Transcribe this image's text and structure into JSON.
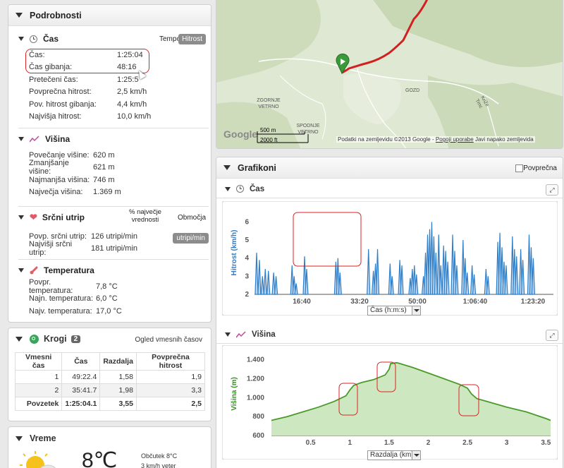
{
  "details": {
    "title": "Podrobnosti",
    "time": {
      "heading": "Čas",
      "tempo_label": "Tempo",
      "speed_button": "Hitrost",
      "rows": [
        {
          "label": "Čas:",
          "value": "1:25:04"
        },
        {
          "label": "Čas gibanja:",
          "value": "48:16"
        },
        {
          "label": "Pretečeni čas:",
          "value": "1:25:5"
        },
        {
          "label": "Povprečna hitrost:",
          "value": "2,5 km/h"
        },
        {
          "label": "Pov. hitrost gibanja:",
          "value": "4,4 km/h"
        },
        {
          "label": "Najvišja hitrost:",
          "value": "10,0 km/h"
        }
      ]
    },
    "altitude": {
      "heading": "Višina",
      "rows": [
        {
          "label": "Povečanje višine:",
          "value": "620 m"
        },
        {
          "label": "Zmanjšanje višine:",
          "value": "621 m"
        },
        {
          "label": "Najmanjša višina:",
          "value": "746 m"
        },
        {
          "label": "Največja višina:",
          "value": "1.369 m"
        }
      ]
    },
    "heart": {
      "heading": "Srčni utrip",
      "percent_label": "% največje vrednosti",
      "range_label": "Območja",
      "unit_button": "utripi/min",
      "rows": [
        {
          "label": "Povp. srčni utrip:",
          "value": "126 utripi/min"
        },
        {
          "label": "Najvišji srčni utrip:",
          "value": "181 utripi/min"
        }
      ]
    },
    "temperature": {
      "heading": "Temperatura",
      "rows": [
        {
          "label": "Povpr. temperatura:",
          "value": "7,8 °C"
        },
        {
          "label": "Najn. temperatura:",
          "value": "6,0 °C"
        },
        {
          "label": "Najv. temperatura:",
          "value": "17,0 °C"
        }
      ]
    }
  },
  "laps": {
    "title": "Krogi",
    "count": "2",
    "link": "Ogled vmesnih časov",
    "headers": [
      "Vmesni čas",
      "Čas",
      "Razdalja",
      "Povprečna hitrost"
    ],
    "rows": [
      [
        "1",
        "49:22.4",
        "1,58",
        "1,9"
      ],
      [
        "2",
        "35:41.7",
        "1,98",
        "3,3"
      ]
    ],
    "total": [
      "Povzetek",
      "1:25:04.1",
      "3,55",
      "2,5"
    ]
  },
  "weather": {
    "title": "Vreme",
    "temperature": "8℃",
    "feels_like": "Občutek 8°C",
    "wind": "3 km/h veter"
  },
  "map": {
    "labels": {
      "zgornje": "ZGORNJE VETRNO",
      "spodnje": "SPODNJE VETRNO",
      "gozd": "GOZD",
      "kriz": "Križe Trnc"
    },
    "scale_m": "500 m",
    "scale_ft": "2000 ft",
    "google": "Google",
    "attribution": "Podatki na zemljevidu ©2013 Google",
    "terms": "Pogoji uporabe",
    "report": "Javi napako zemljevida"
  },
  "charts_panel": {
    "title": "Grafikoni",
    "average_label": "Povprečna"
  },
  "chart_time": {
    "heading": "Čas",
    "axis_select": "Čas (h:m:s)"
  },
  "chart_alt": {
    "heading": "Višina",
    "axis_select": "Razdalja (km)"
  },
  "chart_data": [
    {
      "type": "bar",
      "ylabel": "Hitrost (km/h)",
      "ylim": [
        2,
        6.6
      ],
      "yticks": [
        "2",
        "3",
        "4",
        "5",
        "6"
      ],
      "xticks": [
        "16:40",
        "33:20",
        "50:00",
        "1:06:40",
        "1:23:20"
      ],
      "xlim": [
        0,
        86
      ],
      "series": [
        {
          "color": "#2f7fc8",
          "points": [
            [
              0.6,
              4.3
            ],
            [
              1.4,
              3.9
            ],
            [
              2.3,
              3.0
            ],
            [
              3.1,
              3.4
            ],
            [
              4.0,
              3.3
            ],
            [
              5.5,
              3.2
            ],
            [
              6.2,
              3.0
            ],
            [
              10.8,
              3.6
            ],
            [
              11.4,
              3.0
            ],
            [
              12.0,
              2.6
            ],
            [
              14.4,
              4.1
            ],
            [
              15.0,
              3.4
            ],
            [
              23.4,
              3.8
            ],
            [
              24.0,
              4.0
            ],
            [
              24.6,
              3.2
            ],
            [
              32.8,
              4.5
            ],
            [
              34.2,
              3.3
            ],
            [
              34.8,
              3.7
            ],
            [
              35.4,
              4.5
            ],
            [
              39.0,
              3.7
            ],
            [
              39.6,
              3.0
            ],
            [
              41.8,
              3.9
            ],
            [
              42.4,
              3.6
            ],
            [
              44.8,
              2.9
            ],
            [
              45.4,
              3.4
            ],
            [
              46.0,
              3.6
            ],
            [
              46.6,
              3.1
            ],
            [
              48.6,
              3.0
            ],
            [
              49.2,
              4.3
            ],
            [
              49.8,
              5.3
            ],
            [
              50.4,
              5.6
            ],
            [
              51.0,
              6.0
            ],
            [
              51.6,
              5.2
            ],
            [
              52.2,
              4.3
            ],
            [
              53.0,
              5.3
            ],
            [
              53.6,
              3.6
            ],
            [
              54.4,
              4.7
            ],
            [
              55.0,
              4.4
            ],
            [
              55.6,
              3.8
            ],
            [
              57.0,
              5.3
            ],
            [
              57.6,
              4.4
            ],
            [
              58.2,
              3.6
            ],
            [
              60.0,
              5.0
            ],
            [
              60.6,
              4.0
            ],
            [
              61.2,
              3.2
            ],
            [
              62.6,
              3.6
            ],
            [
              63.2,
              3.1
            ],
            [
              66.6,
              3.4
            ],
            [
              67.2,
              3.0
            ],
            [
              70.0,
              4.9
            ],
            [
              70.6,
              5.4
            ],
            [
              71.2,
              4.6
            ],
            [
              71.8,
              3.8
            ],
            [
              72.4,
              3.6
            ],
            [
              74.2,
              5.2
            ],
            [
              74.8,
              4.5
            ],
            [
              75.4,
              4.1
            ],
            [
              76.6,
              4.5
            ],
            [
              77.2,
              3.9
            ],
            [
              79.0,
              5.3
            ],
            [
              79.6,
              4.6
            ],
            [
              80.2,
              4.0
            ]
          ]
        }
      ]
    },
    {
      "type": "area",
      "ylabel": "Višina (m)",
      "ylim": [
        600,
        1480
      ],
      "yticks": [
        "600",
        "800",
        "1.000",
        "1.200",
        "1.400"
      ],
      "xticks": [
        "0.5",
        "1",
        "1.5",
        "2",
        "2.5",
        "3",
        "3.5"
      ],
      "xlim": [
        0,
        3.56
      ],
      "series": [
        {
          "color": "#4a9a2a",
          "x": [
            0,
            0.2,
            0.4,
            0.6,
            0.8,
            0.95,
            1.0,
            1.05,
            1.15,
            1.3,
            1.45,
            1.5,
            1.52,
            1.6,
            1.8,
            2.0,
            2.2,
            2.4,
            2.5,
            2.55,
            2.62,
            2.75,
            3.0,
            3.25,
            3.5,
            3.56
          ],
          "y": [
            760,
            800,
            850,
            900,
            960,
            1020,
            1080,
            1130,
            1160,
            1190,
            1240,
            1300,
            1360,
            1370,
            1320,
            1260,
            1200,
            1140,
            1100,
            1040,
            990,
            960,
            900,
            850,
            780,
            760
          ]
        }
      ]
    }
  ]
}
